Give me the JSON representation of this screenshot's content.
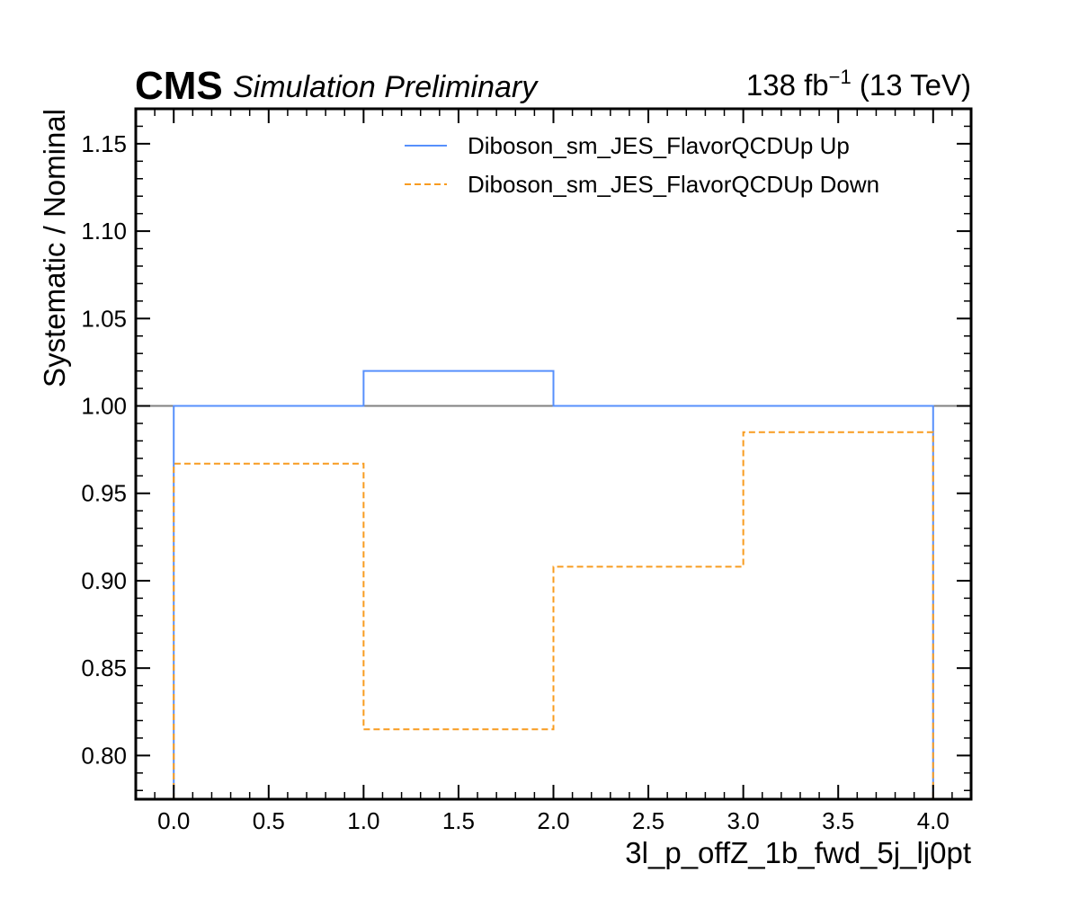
{
  "header": {
    "experiment": "CMS",
    "label": "Simulation Preliminary",
    "lumi_value": "138 fb",
    "lumi_exponent": "−1",
    "lumi_energy": " (13 TeV)"
  },
  "chart_data": {
    "type": "line",
    "drawstyle": "steps",
    "xlabel": "3l_p_offZ_1b_fwd_5j_lj0pt",
    "ylabel": "Systematic / Nominal",
    "xlim": [
      -0.2,
      4.2
    ],
    "ylim": [
      0.775,
      1.17
    ],
    "bin_edges": [
      0,
      1,
      2,
      3,
      4
    ],
    "xticks": [
      {
        "value": 0.0,
        "label": "0.0"
      },
      {
        "value": 0.5,
        "label": "0.5"
      },
      {
        "value": 1.0,
        "label": "1.0"
      },
      {
        "value": 1.5,
        "label": "1.5"
      },
      {
        "value": 2.0,
        "label": "2.0"
      },
      {
        "value": 2.5,
        "label": "2.5"
      },
      {
        "value": 3.0,
        "label": "3.0"
      },
      {
        "value": 3.5,
        "label": "3.5"
      },
      {
        "value": 4.0,
        "label": "4.0"
      }
    ],
    "yticks": [
      {
        "value": 0.8,
        "label": "0.80"
      },
      {
        "value": 0.85,
        "label": "0.85"
      },
      {
        "value": 0.9,
        "label": "0.90"
      },
      {
        "value": 0.95,
        "label": "0.95"
      },
      {
        "value": 1.0,
        "label": "1.00"
      },
      {
        "value": 1.05,
        "label": "1.05"
      },
      {
        "value": 1.1,
        "label": "1.10"
      },
      {
        "value": 1.15,
        "label": "1.15"
      }
    ],
    "reference_line": {
      "value": 1.0,
      "color": "#808080"
    },
    "series": [
      {
        "name": "Diboson_sm_JES_FlavorQCDUp Up",
        "color": "#5790fc",
        "linestyle": "solid",
        "values": [
          1.0,
          1.02,
          1.0,
          1.0
        ]
      },
      {
        "name": "Diboson_sm_JES_FlavorQCDUp Down",
        "color": "#f89c20",
        "linestyle": "dashed",
        "values": [
          0.967,
          0.815,
          0.908,
          0.985
        ]
      }
    ],
    "legend_position": "top-right",
    "grid": false
  }
}
